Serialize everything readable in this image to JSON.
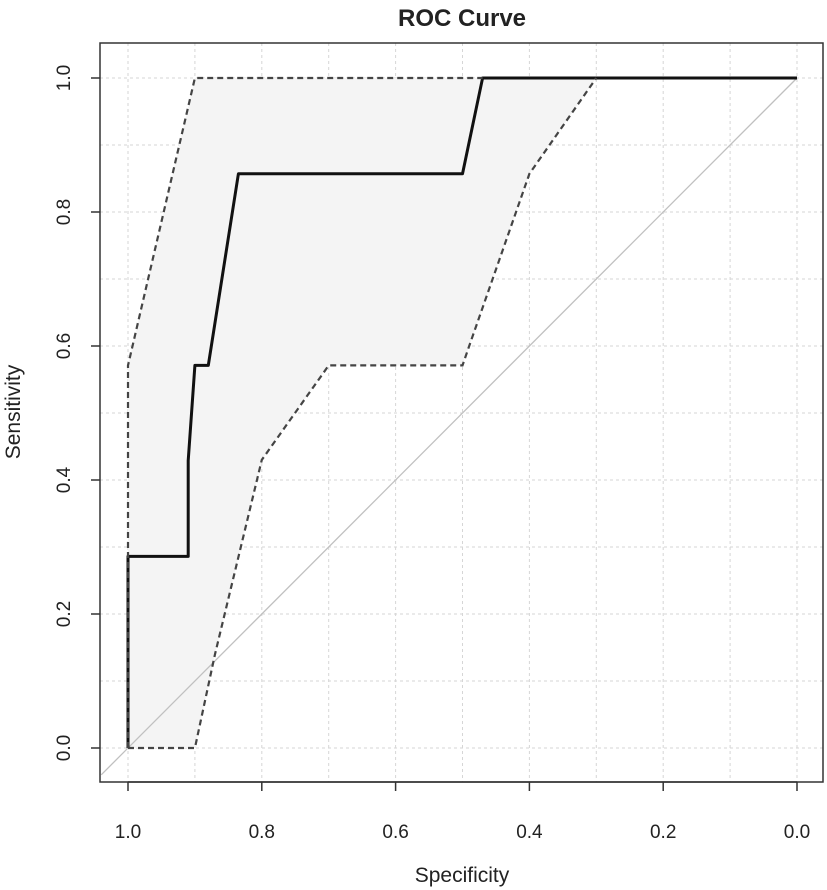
{
  "chart_data": {
    "type": "line",
    "title": "ROC Curve",
    "xlabel": "Specificity",
    "ylabel": "Sensitivity",
    "xlim": [
      1.0,
      0.0
    ],
    "ylim": [
      0.0,
      1.0
    ],
    "x_reversed": true,
    "x_ticks": [
      "1.0",
      "0.8",
      "0.6",
      "0.4",
      "0.2",
      "0.0"
    ],
    "y_ticks": [
      "0.0",
      "0.2",
      "0.4",
      "0.6",
      "0.8",
      "1.0"
    ],
    "grid": true,
    "legend": "none",
    "series": [
      {
        "style": "solid",
        "color": "#111111",
        "points": [
          [
            1.0,
            0.0
          ],
          [
            1.0,
            0.286
          ],
          [
            0.91,
            0.286
          ],
          [
            0.91,
            0.429
          ],
          [
            0.9,
            0.571
          ],
          [
            0.88,
            0.571
          ],
          [
            0.835,
            0.857
          ],
          [
            0.5,
            0.857
          ],
          [
            0.47,
            1.0
          ],
          [
            0.0,
            1.0
          ]
        ]
      },
      {
        "style": "dashed",
        "color": "#444444",
        "points": [
          [
            1.0,
            0.0
          ],
          [
            1.0,
            0.571
          ],
          [
            0.9,
            1.0
          ],
          [
            0.5,
            1.0
          ],
          [
            0.47,
            1.0
          ]
        ]
      },
      {
        "style": "dashed",
        "color": "#444444",
        "points": [
          [
            1.0,
            0.0
          ],
          [
            0.9,
            0.0
          ],
          [
            0.87,
            0.14
          ],
          [
            0.8,
            0.43
          ],
          [
            0.7,
            0.571
          ],
          [
            0.5,
            0.571
          ],
          [
            0.49,
            0.6
          ],
          [
            0.4,
            0.857
          ],
          [
            0.3,
            1.0
          ]
        ]
      },
      {
        "style": "solid",
        "color": "#c0c0c0",
        "points": [
          [
            1.04,
            -0.04
          ],
          [
            0.0,
            1.0
          ]
        ]
      }
    ],
    "shaded_region": {
      "color": "#f4f4f4",
      "upper": [
        [
          1.0,
          0.571
        ],
        [
          0.9,
          1.0
        ],
        [
          0.3,
          1.0
        ]
      ],
      "lower": [
        [
          1.0,
          0.0
        ],
        [
          0.9,
          0.0
        ],
        [
          0.87,
          0.14
        ],
        [
          0.8,
          0.43
        ],
        [
          0.7,
          0.571
        ],
        [
          0.5,
          0.571
        ],
        [
          0.49,
          0.6
        ],
        [
          0.4,
          0.857
        ],
        [
          0.3,
          1.0
        ]
      ]
    }
  }
}
